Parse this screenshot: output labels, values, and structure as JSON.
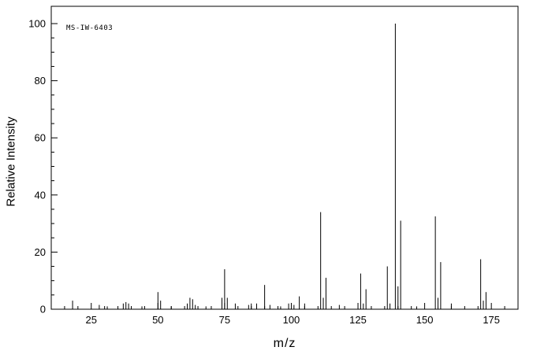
{
  "chart_data": {
    "type": "bar",
    "subtype": "mass-spectrum",
    "title": "",
    "xlabel": "m/z",
    "ylabel": "Relative Intensity",
    "annotation": "MS-IW-6403",
    "xlim": [
      10,
      185
    ],
    "ylim": [
      0,
      100
    ],
    "x_major_ticks": [
      25,
      50,
      75,
      100,
      125,
      150,
      175
    ],
    "y_major_ticks": [
      0,
      20,
      40,
      60,
      80,
      100
    ],
    "x_minor_step": 5,
    "y_minor_step": 5,
    "grid": false,
    "legend": "none",
    "peaks": [
      [
        18,
        3
      ],
      [
        28,
        1.5
      ],
      [
        31,
        1
      ],
      [
        37,
        2
      ],
      [
        38,
        2.5
      ],
      [
        39,
        2
      ],
      [
        44,
        1
      ],
      [
        50,
        6
      ],
      [
        51,
        3
      ],
      [
        55,
        1
      ],
      [
        61,
        2
      ],
      [
        62,
        4
      ],
      [
        63,
        3.5
      ],
      [
        64,
        1.5
      ],
      [
        68,
        1
      ],
      [
        74,
        4
      ],
      [
        75,
        14
      ],
      [
        76,
        4
      ],
      [
        79,
        2
      ],
      [
        84,
        1.5
      ],
      [
        85,
        2
      ],
      [
        87,
        2
      ],
      [
        90,
        8.5
      ],
      [
        92,
        1.5
      ],
      [
        96,
        1
      ],
      [
        99,
        2
      ],
      [
        101,
        1.5
      ],
      [
        103,
        4.5
      ],
      [
        105,
        2
      ],
      [
        111,
        34
      ],
      [
        112,
        4
      ],
      [
        113,
        11
      ],
      [
        118,
        1.5
      ],
      [
        126,
        12.5
      ],
      [
        127,
        2
      ],
      [
        128,
        7
      ],
      [
        136,
        15
      ],
      [
        137,
        2
      ],
      [
        139,
        100
      ],
      [
        140,
        8
      ],
      [
        141,
        31
      ],
      [
        147,
        1
      ],
      [
        154,
        32.5
      ],
      [
        155,
        4
      ],
      [
        156,
        16.5
      ],
      [
        160,
        2
      ],
      [
        171,
        17.5
      ],
      [
        172,
        3
      ],
      [
        173,
        6
      ]
    ]
  }
}
